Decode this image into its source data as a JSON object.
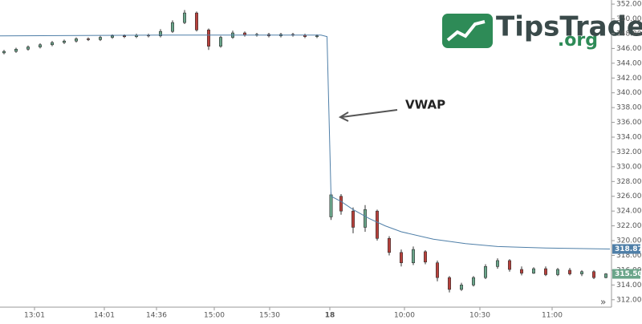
{
  "chart_data": {
    "type": "candlestick",
    "annotation": "VWAP",
    "logo": {
      "name": "TipsTrade",
      "suffix": ".org"
    },
    "nav_label": "»",
    "up_color": "#6aa58a",
    "down_color": "#b8413c",
    "vwap_color": "#4f7fa8",
    "xlim": [
      0,
      152
    ],
    "ylim": [
      311,
      352.5
    ],
    "xticks": [
      {
        "value": 8.6,
        "label": "13:01"
      },
      {
        "value": 26,
        "label": "14:01"
      },
      {
        "value": 39,
        "label": "14:36"
      },
      {
        "value": 53.4,
        "label": "15:00"
      },
      {
        "value": 67.2,
        "label": "15:30"
      },
      {
        "value": 82.2,
        "label": "18"
      },
      {
        "value": 100.8,
        "label": "10:00"
      },
      {
        "value": 119.6,
        "label": "10:30"
      },
      {
        "value": 137.6,
        "label": "11:00"
      }
    ],
    "yticks": [
      {
        "value": 312,
        "label": "312.00"
      },
      {
        "value": 314,
        "label": "314.00"
      },
      {
        "value": 316,
        "label": "316.00"
      },
      {
        "value": 318,
        "label": "318.00"
      },
      {
        "value": 320,
        "label": "320.00"
      },
      {
        "value": 322,
        "label": "322.00"
      },
      {
        "value": 324,
        "label": "324.00"
      },
      {
        "value": 326,
        "label": "326.00"
      },
      {
        "value": 328,
        "label": "328.00"
      },
      {
        "value": 330,
        "label": "330.00"
      },
      {
        "value": 332,
        "label": "332.00"
      },
      {
        "value": 334,
        "label": "334.00"
      },
      {
        "value": 336,
        "label": "336.00"
      },
      {
        "value": 338,
        "label": "338.00"
      },
      {
        "value": 340,
        "label": "340.00"
      },
      {
        "value": 342,
        "label": "342.00"
      },
      {
        "value": 344,
        "label": "344.00"
      },
      {
        "value": 346,
        "label": "346.00"
      },
      {
        "value": 348,
        "label": "348.00"
      },
      {
        "value": 350,
        "label": "350.00"
      },
      {
        "value": 352,
        "label": "352.00"
      }
    ],
    "candles": {
      "x": [
        1,
        4,
        7,
        10,
        13,
        16,
        19,
        22,
        25,
        28,
        31,
        34,
        37,
        40,
        43,
        46,
        49,
        52,
        55,
        58,
        61,
        64,
        67,
        70,
        73,
        76,
        79,
        82.5,
        85,
        88,
        91,
        94,
        97,
        100,
        103,
        106,
        109,
        112,
        115,
        118,
        121,
        124,
        127,
        130,
        133,
        136,
        139,
        142,
        145,
        148,
        151
      ],
      "open": [
        345.4,
        345.6,
        345.9,
        346.2,
        346.5,
        346.8,
        347.0,
        347.3,
        347.2,
        347.5,
        347.7,
        347.6,
        347.8,
        347.7,
        348.3,
        349.5,
        350.8,
        348.5,
        346.3,
        347.5,
        348.1,
        347.8,
        347.9,
        347.7,
        347.9,
        347.8,
        347.6,
        323.2,
        326,
        324,
        321.8,
        324,
        320.3,
        318.4,
        317,
        318.5,
        317,
        315,
        313.4,
        314,
        315,
        316.5,
        317.3,
        316.1,
        315.6,
        316.2,
        315.4,
        316,
        315.5,
        315.8,
        315
      ],
      "high": [
        345.8,
        346.1,
        346.4,
        346.7,
        347.0,
        347.2,
        347.5,
        347.5,
        347.7,
        347.9,
        347.9,
        348.0,
        348.0,
        348.6,
        349.8,
        351.2,
        351.0,
        348.7,
        347.7,
        348.4,
        348.3,
        348.1,
        348.1,
        348.1,
        348.1,
        348.0,
        347.9,
        326.5,
        326.3,
        324.5,
        324.8,
        324.2,
        320.6,
        318.8,
        319.2,
        318.7,
        317.3,
        315.2,
        314.3,
        315.2,
        316.8,
        317.6,
        317.5,
        316.5,
        316.4,
        316.5,
        316.3,
        316.3,
        316,
        316,
        315.6
      ],
      "low": [
        345.2,
        345.4,
        345.7,
        346.0,
        346.3,
        346.6,
        346.8,
        347.0,
        347.0,
        347.3,
        347.4,
        347.4,
        347.5,
        347.5,
        348.1,
        349.3,
        348.3,
        345.8,
        346.1,
        347.3,
        347.6,
        347.6,
        347.5,
        347.5,
        347.6,
        347.4,
        347.4,
        322.8,
        323.5,
        321,
        321.2,
        320,
        318,
        316.5,
        316.7,
        316.8,
        314.5,
        313,
        313.2,
        313.8,
        314.8,
        316.2,
        315.8,
        315.3,
        315.5,
        315.2,
        315.2,
        315.3,
        315.2,
        314.8,
        314.9
      ],
      "close": [
        345.6,
        345.9,
        346.2,
        346.5,
        346.8,
        347.0,
        347.3,
        347.2,
        347.5,
        347.7,
        347.6,
        347.8,
        347.7,
        348.3,
        349.5,
        350.8,
        348.5,
        346.3,
        347.5,
        348.1,
        347.8,
        347.9,
        347.7,
        347.9,
        347.8,
        347.6,
        347.7,
        326.2,
        324,
        321.8,
        324.2,
        320.3,
        318.4,
        317,
        318.8,
        317.1,
        315,
        313.4,
        314,
        315,
        316.5,
        317.3,
        316.1,
        315.6,
        316.2,
        315.4,
        316.1,
        315.5,
        315.8,
        315,
        315.5
      ]
    },
    "vwap": {
      "x": [
        0,
        40,
        80,
        81.5,
        82.5,
        85,
        88,
        92,
        96,
        100,
        108,
        116,
        124,
        136,
        152
      ],
      "values": [
        347.7,
        347.8,
        347.8,
        347.6,
        326,
        325.3,
        324.2,
        323,
        322,
        321.2,
        320.2,
        319.6,
        319.2,
        319,
        318.87
      ],
      "last": 318.87
    },
    "last_price": {
      "value": 315.5,
      "label": "315.50"
    }
  }
}
